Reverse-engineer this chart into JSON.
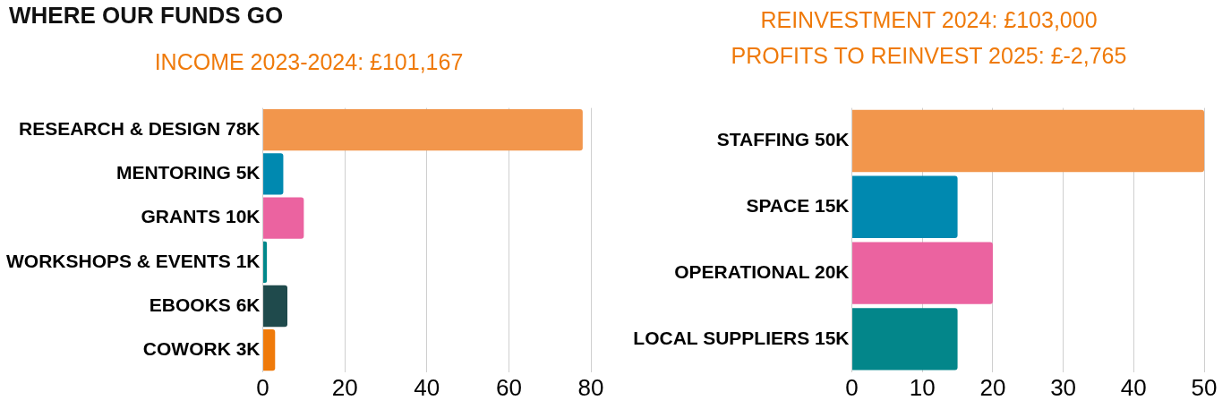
{
  "chart_data": [
    {
      "type": "bar",
      "orientation": "horizontal",
      "title": "WHERE OUR FUNDS GO",
      "subtitle": "INCOME 2023-2024: £101,167",
      "categories": [
        "RESEARCH & DESIGN 78K",
        "MENTORING 5K",
        "GRANTS 10K",
        "WORKSHOPS & EVENTS 1K",
        "EBOOKS 6K",
        "COWORK 3K"
      ],
      "values": [
        78,
        5,
        10,
        1,
        6,
        3
      ],
      "colors": [
        "#f2964c",
        "#0089b0",
        "#eb63a0",
        "#00878a",
        "#1f4a4c",
        "#ef7a0a"
      ],
      "xlim": [
        0,
        80
      ],
      "xticks": [
        0,
        20,
        40,
        60,
        80
      ],
      "grid": "x"
    },
    {
      "type": "bar",
      "orientation": "horizontal",
      "title": "REINVESTMENT 2024: £103,000",
      "subtitle": "PROFITS TO REINVEST 2025: £-2,765",
      "categories": [
        "STAFFING 50K",
        "SPACE 15K",
        "OPERATIONAL 20K",
        "LOCAL SUPPLIERS 15K"
      ],
      "values": [
        50,
        15,
        20,
        15
      ],
      "colors": [
        "#f2964c",
        "#0089b0",
        "#eb63a0",
        "#03868a"
      ],
      "xlim": [
        0,
        50
      ],
      "xticks": [
        0,
        10,
        20,
        30,
        40,
        50
      ],
      "grid": "x"
    }
  ]
}
